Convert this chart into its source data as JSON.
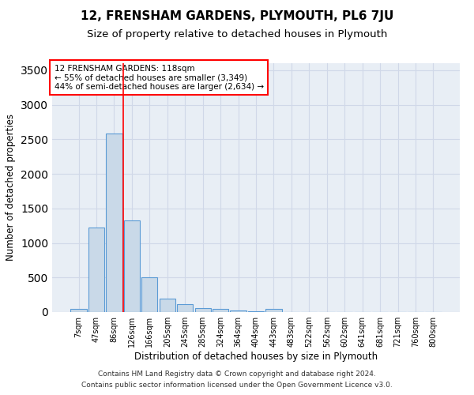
{
  "title": "12, FRENSHAM GARDENS, PLYMOUTH, PL6 7JU",
  "subtitle": "Size of property relative to detached houses in Plymouth",
  "xlabel": "Distribution of detached houses by size in Plymouth",
  "ylabel": "Number of detached properties",
  "categories": [
    "7sqm",
    "47sqm",
    "86sqm",
    "126sqm",
    "166sqm",
    "205sqm",
    "245sqm",
    "285sqm",
    "324sqm",
    "364sqm",
    "404sqm",
    "443sqm",
    "483sqm",
    "522sqm",
    "562sqm",
    "602sqm",
    "641sqm",
    "681sqm",
    "721sqm",
    "760sqm",
    "800sqm"
  ],
  "values": [
    50,
    1220,
    2580,
    1330,
    500,
    190,
    110,
    60,
    50,
    20,
    15,
    50,
    0,
    0,
    0,
    0,
    0,
    0,
    0,
    0,
    0
  ],
  "bar_color": "#c9d9e8",
  "bar_edge_color": "#5b9bd5",
  "bar_linewidth": 0.8,
  "grid_color": "#d0d8e8",
  "background_color": "#e8eef5",
  "red_line_x": 2.5,
  "annotation_text": "12 FRENSHAM GARDENS: 118sqm\n← 55% of detached houses are smaller (3,349)\n44% of semi-detached houses are larger (2,634) →",
  "annotation_box_color": "white",
  "annotation_border_color": "red",
  "ylim": [
    0,
    3600
  ],
  "yticks": [
    0,
    500,
    1000,
    1500,
    2000,
    2500,
    3000,
    3500
  ],
  "footer_line1": "Contains HM Land Registry data © Crown copyright and database right 2024.",
  "footer_line2": "Contains public sector information licensed under the Open Government Licence v3.0.",
  "title_fontsize": 11,
  "subtitle_fontsize": 9.5,
  "axis_label_fontsize": 8.5,
  "tick_fontsize": 7,
  "annotation_fontsize": 7.5,
  "footer_fontsize": 6.5
}
